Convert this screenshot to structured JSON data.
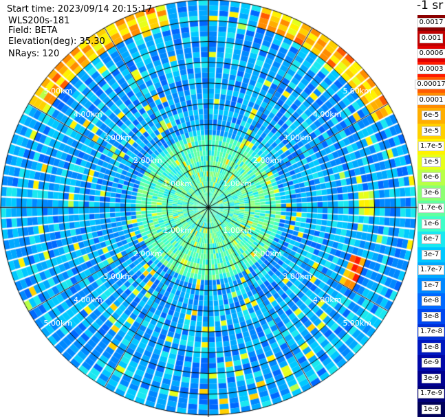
{
  "header": {
    "start_time": "Start time: 2023/09/14 20:15:17",
    "instrument": "WLS200s-181",
    "field": "Field: BETA",
    "elevation": "Elevation(deg): 35.30",
    "nrays": "NRays: 120"
  },
  "colorbar": {
    "title": "-1 sr",
    "labels": [
      "0.0017",
      "0.001",
      "0.0006",
      "0.0003",
      "0.00017",
      "0.0001",
      "6e-5",
      "3e-5",
      "1.7e-5",
      "1e-5",
      "6e-6",
      "3e-6",
      "1.7e-6",
      "1e-6",
      "6e-7",
      "3e-7",
      "1.7e-7",
      "1e-7",
      "6e-8",
      "3e-8",
      "1.7e-8",
      "1e-8",
      "6e-9",
      "3e-9",
      "1.7e-9",
      "1e-9"
    ],
    "colors": [
      "#8b0000",
      "#c00000",
      "#e00000",
      "#ff1a00",
      "#ff5a00",
      "#ff8c00",
      "#ffae00",
      "#ffd000",
      "#fff200",
      "#e6ff1a",
      "#b8ff47",
      "#8cff73",
      "#60ffa0",
      "#3dffc8",
      "#1ae8f0",
      "#00c8ff",
      "#00a8ff",
      "#0088ff",
      "#0068ff",
      "#0048f0",
      "#0030d8",
      "#0018c0",
      "#0008a8",
      "#00008f",
      "#000078",
      "#00005a"
    ]
  },
  "chart_data": {
    "type": "heatmap",
    "projection": "polar-ppi",
    "field": "BETA",
    "units": "sr-1",
    "nrays": 120,
    "elevation_deg": 35.3,
    "range_rings_km": [
      1,
      2,
      3,
      4,
      5
    ],
    "range_ring_labels": [
      "1.00km",
      "2.00km",
      "3.00km",
      "4.00km",
      "5.00km"
    ],
    "max_range_km": 5.0,
    "spokes_deg": [
      0,
      30,
      60,
      90,
      120,
      150,
      180,
      210,
      240,
      270,
      300,
      330
    ]
  }
}
